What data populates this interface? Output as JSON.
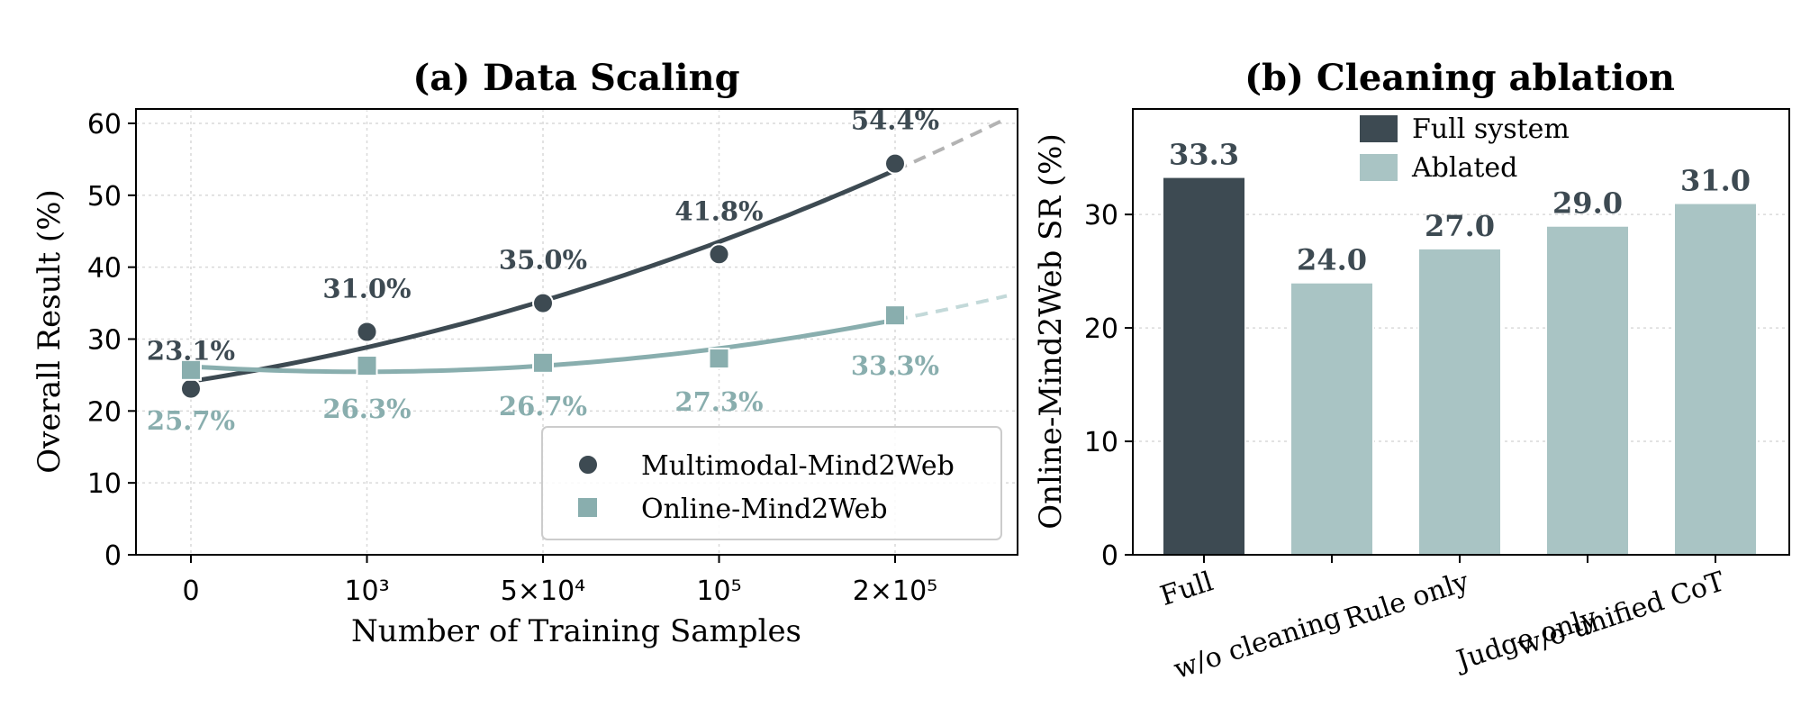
{
  "colors": {
    "series1": "#3d4a52",
    "series2": "#89aeae",
    "extrapolation": "#b3b3b3",
    "full_bar": "#3d4a52",
    "ablated_bar": "#a9c4c4"
  },
  "chart_data": [
    {
      "type": "line",
      "title": "(a) Data Scaling",
      "xlabel": "Number of Training Samples",
      "ylabel": "Overall Result (%)",
      "ylim": [
        0,
        62
      ],
      "yticks": [
        "0",
        "10",
        "20",
        "30",
        "40",
        "50",
        "60"
      ],
      "categories": [
        "0",
        "10³",
        "5×10⁴",
        "10⁵",
        "2×10⁵"
      ],
      "grid": true,
      "legend_position": "lower-right",
      "series": [
        {
          "name": "Multimodal-Mind2Web",
          "marker": "circle",
          "values": [
            23.1,
            31.0,
            35.0,
            41.8,
            54.4
          ],
          "labels": [
            "23.1%",
            "31.0%",
            "35.0%",
            "41.8%",
            "54.4%"
          ]
        },
        {
          "name": "Online-Mind2Web",
          "marker": "square",
          "values": [
            25.7,
            26.3,
            26.7,
            27.3,
            33.3
          ],
          "labels": [
            "25.7%",
            "26.3%",
            "26.7%",
            "27.3%",
            "33.3%"
          ]
        }
      ]
    },
    {
      "type": "bar",
      "title": "(b) Cleaning ablation",
      "ylabel": "Online-Mind2Web SR (%)",
      "ylim": [
        0,
        39.3
      ],
      "yticks": [
        "0",
        "10",
        "20",
        "30"
      ],
      "categories": [
        "Full",
        "w/o cleaning",
        "Rule only",
        "Judge only",
        "w/o unified CoT"
      ],
      "values": [
        33.3,
        24.0,
        27.0,
        29.0,
        31.0
      ],
      "labels": [
        "33.3",
        "24.0",
        "27.0",
        "29.0",
        "31.0"
      ],
      "bar_groups": [
        "full",
        "ablated",
        "ablated",
        "ablated",
        "ablated"
      ],
      "grid": true,
      "legend_position": "top-center",
      "legend": [
        {
          "name": "Full system",
          "group": "full"
        },
        {
          "name": "Ablated",
          "group": "ablated"
        }
      ]
    }
  ]
}
